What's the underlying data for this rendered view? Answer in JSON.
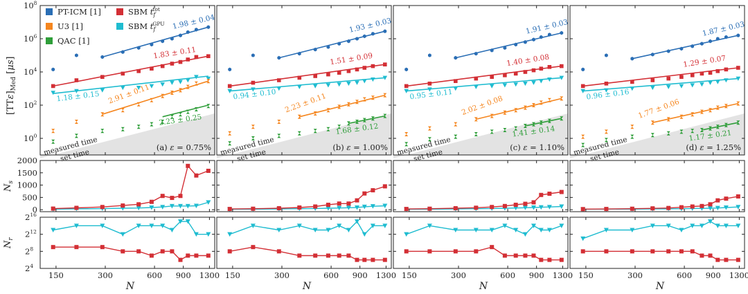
{
  "chart_data": {
    "type": "line",
    "x_values": [
      144,
      200,
      288,
      384,
      480,
      576,
      672,
      768,
      864,
      960,
      1080,
      1280
    ],
    "x_ticks": [
      {
        "label": "150",
        "value": 150
      },
      {
        "label": "300",
        "value": 300
      },
      {
        "label": "600",
        "value": 600
      },
      {
        "label": "900",
        "value": 900
      },
      {
        "label": "1300",
        "value": 1300
      }
    ],
    "xlabel": "N",
    "top_ylabel": "[TTε]_Med [μs]",
    "top_ylim_log10": [
      -1,
      8
    ],
    "top_yticks": [
      {
        "label": "10^0",
        "value": 0
      },
      {
        "label": "10^2",
        "value": 2
      },
      {
        "label": "10^4",
        "value": 4
      },
      {
        "label": "10^6",
        "value": 6
      },
      {
        "label": "10^8",
        "value": 8
      }
    ],
    "mid_ylabel": "N_s",
    "mid_ylim": [
      -80,
      2000
    ],
    "mid_yticks": [
      "0",
      "500",
      "1000",
      "1500",
      "2000"
    ],
    "bot_ylabel": "N_r",
    "bot_ylim_log2": [
      4,
      16
    ],
    "bot_yticks": [
      {
        "label": "2^4",
        "value": 4
      },
      {
        "label": "2^8",
        "value": 8
      },
      {
        "label": "2^12",
        "value": 12
      },
      {
        "label": "2^16",
        "value": 16
      }
    ],
    "region_labels": {
      "measured": "measured time",
      "set": "set time"
    },
    "colors": {
      "ptcim": "#2a6eb5",
      "u3": "#f5861f",
      "qac": "#2f9e3a",
      "sbm_tot": "#d32f35",
      "sbm_gpu": "#1fbcd0",
      "shade": "#e3e3e3"
    },
    "legend": {
      "position": "top-left of panel (a)",
      "entries": [
        {
          "key": "ptcim",
          "label": "PT-ICM [1]"
        },
        {
          "key": "u3",
          "label": "U3 [1]"
        },
        {
          "key": "qac",
          "label": "QAC [1]"
        },
        {
          "key": "sbm_tot",
          "label": "SBM t_f^tot"
        },
        {
          "key": "sbm_gpu",
          "label": "SBM t_f^GPU"
        }
      ]
    },
    "panels": [
      {
        "label": "(a) ε = 0.75%",
        "shade_log10": [
          -1.2,
          1.5
        ],
        "exponents": [
          {
            "key": "ptcim",
            "text": "1.98 ± 0.04"
          },
          {
            "key": "sbm_tot",
            "text": "1.83 ± 0.11"
          },
          {
            "key": "sbm_gpu",
            "text": "1.18 ± 0.15"
          },
          {
            "key": "u3",
            "text": "2.91 ± 0.11"
          },
          {
            "key": "qac",
            "text": "2.23 ± 0.25"
          }
        ],
        "tts": {
          "ptcim": [
            4.15,
            5.0,
            4.9,
            5.2,
            5.45,
            5.65,
            5.85,
            6.0,
            6.2,
            6.4,
            6.55,
            6.7
          ],
          "sbm_tot": [
            3.15,
            3.5,
            3.7,
            3.9,
            4.05,
            4.2,
            4.35,
            4.5,
            4.6,
            4.75,
            4.9,
            4.95
          ],
          "sbm_gpu": [
            2.75,
            2.85,
            2.9,
            3.05,
            3.05,
            3.15,
            3.25,
            3.35,
            3.4,
            3.5,
            3.7,
            3.6
          ],
          "u3": [
            0.45,
            1.0,
            1.45,
            1.7,
            2.05,
            2.3,
            2.55,
            2.75,
            2.9,
            3.1,
            3.3,
            3.45
          ],
          "qac": [
            -0.2,
            0.15,
            0.45,
            0.55,
            0.7,
            0.85,
            1.0,
            1.3,
            1.45,
            1.6,
            1.75,
            1.95
          ]
        },
        "fits": {
          "ptcim": [
            288,
            1280,
            4.9,
            6.7
          ],
          "sbm_tot": [
            144,
            1280,
            3.15,
            4.95
          ],
          "sbm_gpu": [
            144,
            1280,
            2.7,
            3.75
          ],
          "u3": [
            288,
            1280,
            1.45,
            3.45
          ],
          "qac": [
            672,
            1280,
            1.3,
            2.0
          ]
        },
        "ns": {
          "sbm_tot": [
            45,
            75,
            110,
            170,
            220,
            320,
            560,
            480,
            560,
            1780,
            1390,
            1580
          ],
          "sbm_gpu": [
            20,
            35,
            45,
            60,
            70,
            90,
            110,
            150,
            150,
            150,
            160,
            300
          ]
        },
        "nr": {
          "sbm_tot": [
            9,
            9,
            9,
            8,
            8,
            7,
            8,
            8,
            6,
            7,
            7,
            7
          ],
          "sbm_gpu": [
            13,
            14,
            14,
            12,
            14,
            14,
            14,
            13,
            15,
            15,
            12,
            12
          ]
        }
      },
      {
        "label": "(b) ε = 1.00%",
        "shade_log10": [
          -1.2,
          1.5
        ],
        "exponents": [
          {
            "key": "ptcim",
            "text": "1.93 ± 0.03"
          },
          {
            "key": "sbm_tot",
            "text": "1.51 ± 0.09"
          },
          {
            "key": "sbm_gpu",
            "text": "0.94 ± 0.10"
          },
          {
            "key": "u3",
            "text": "2.23 ± 0.11"
          },
          {
            "key": "qac",
            "text": "1.68 ± 0.12"
          }
        ],
        "tts": {
          "ptcim": [
            4.15,
            5.0,
            4.85,
            5.1,
            5.35,
            5.5,
            5.7,
            5.85,
            6.0,
            6.15,
            6.3,
            6.45
          ],
          "sbm_tot": [
            3.15,
            3.35,
            3.5,
            3.65,
            3.75,
            3.85,
            3.95,
            4.05,
            4.15,
            4.25,
            4.35,
            4.45
          ],
          "sbm_gpu": [
            2.85,
            2.95,
            3.0,
            3.1,
            3.15,
            3.2,
            3.25,
            3.3,
            3.35,
            3.45,
            3.55,
            3.65
          ],
          "u3": [
            0.3,
            0.7,
            1.0,
            1.3,
            1.5,
            1.7,
            1.9,
            2.05,
            2.2,
            2.35,
            2.45,
            2.6
          ],
          "qac": [
            -0.3,
            0.0,
            0.15,
            0.3,
            0.45,
            0.55,
            0.7,
            0.9,
            1.0,
            1.1,
            1.2,
            1.35
          ]
        },
        "fits": {
          "ptcim": [
            288,
            1280,
            4.85,
            6.45
          ],
          "sbm_tot": [
            144,
            1280,
            3.15,
            4.45
          ],
          "sbm_gpu": [
            144,
            1280,
            2.85,
            3.65
          ],
          "u3": [
            384,
            1280,
            1.3,
            2.6
          ],
          "qac": [
            768,
            1280,
            0.9,
            1.35
          ]
        },
        "ns": {
          "sbm_tot": [
            30,
            40,
            60,
            90,
            130,
            200,
            250,
            250,
            380,
            660,
            790,
            950
          ],
          "sbm_gpu": [
            15,
            20,
            30,
            40,
            50,
            60,
            70,
            80,
            90,
            120,
            140,
            160
          ]
        },
        "nr": {
          "sbm_tot": [
            8,
            9,
            8,
            7,
            7,
            7,
            7,
            7,
            6,
            6,
            6,
            6
          ],
          "sbm_gpu": [
            12,
            14,
            13,
            14,
            13,
            13,
            14,
            13,
            15,
            12,
            14,
            14
          ]
        }
      },
      {
        "label": "(c) ε = 1.10%",
        "shade_log10": [
          -1.2,
          1.5
        ],
        "exponents": [
          {
            "key": "ptcim",
            "text": "1.91 ± 0.03"
          },
          {
            "key": "sbm_tot",
            "text": "1.40 ± 0.08"
          },
          {
            "key": "sbm_gpu",
            "text": "0.95 ± 0.11"
          },
          {
            "key": "u3",
            "text": "2.02 ± 0.08"
          },
          {
            "key": "qac",
            "text": "1.41 ± 0.14"
          }
        ],
        "tts": {
          "ptcim": [
            4.15,
            5.0,
            4.85,
            5.1,
            5.3,
            5.45,
            5.65,
            5.8,
            5.95,
            6.1,
            6.25,
            6.35
          ],
          "sbm_tot": [
            3.15,
            3.3,
            3.45,
            3.6,
            3.7,
            3.8,
            3.9,
            4.0,
            4.1,
            4.2,
            4.3,
            4.35
          ],
          "sbm_gpu": [
            2.85,
            2.95,
            3.0,
            3.1,
            3.15,
            3.2,
            3.25,
            3.3,
            3.35,
            3.45,
            3.55,
            3.65
          ],
          "u3": [
            0.25,
            0.6,
            0.85,
            1.15,
            1.35,
            1.55,
            1.7,
            1.85,
            2.0,
            2.15,
            2.3,
            2.4
          ],
          "qac": [
            -0.35,
            -0.05,
            0.1,
            0.25,
            0.4,
            0.5,
            0.6,
            0.75,
            0.85,
            0.95,
            1.05,
            1.2
          ]
        },
        "fits": {
          "ptcim": [
            288,
            1280,
            4.85,
            6.35
          ],
          "sbm_tot": [
            144,
            1280,
            3.15,
            4.35
          ],
          "sbm_gpu": [
            144,
            1280,
            2.85,
            3.65
          ],
          "u3": [
            384,
            1280,
            1.15,
            2.4
          ],
          "qac": [
            768,
            1280,
            0.75,
            1.2
          ]
        },
        "ns": {
          "sbm_tot": [
            30,
            40,
            60,
            80,
            110,
            150,
            200,
            240,
            300,
            600,
            650,
            720
          ],
          "sbm_gpu": [
            15,
            20,
            30,
            40,
            50,
            60,
            70,
            80,
            90,
            100,
            110,
            130
          ]
        },
        "nr": {
          "sbm_tot": [
            8,
            8,
            8,
            8,
            9,
            7,
            7,
            7,
            7,
            6,
            6,
            6
          ],
          "sbm_gpu": [
            12,
            14,
            13,
            13,
            13,
            14,
            13,
            12,
            14,
            13,
            13,
            14
          ]
        }
      },
      {
        "label": "(d) ε = 1.25%",
        "shade_log10": [
          -1.2,
          1.5
        ],
        "exponents": [
          {
            "key": "ptcim",
            "text": "1.87 ± 0.03"
          },
          {
            "key": "sbm_tot",
            "text": "1.29 ± 0.07"
          },
          {
            "key": "sbm_gpu",
            "text": "0.96 ± 0.16"
          },
          {
            "key": "u3",
            "text": "1.77 ± 0.06"
          },
          {
            "key": "qac",
            "text": "1.17 ± 0.21"
          }
        ],
        "tts": {
          "ptcim": [
            4.15,
            5.0,
            4.8,
            5.05,
            5.25,
            5.4,
            5.55,
            5.7,
            5.85,
            6.0,
            6.1,
            6.2
          ],
          "sbm_tot": [
            3.15,
            3.3,
            3.4,
            3.5,
            3.6,
            3.7,
            3.8,
            3.9,
            3.95,
            4.05,
            4.15,
            4.25
          ],
          "sbm_gpu": [
            2.85,
            2.9,
            3.0,
            3.05,
            3.1,
            3.15,
            3.2,
            3.25,
            3.35,
            3.4,
            3.5,
            3.6
          ],
          "u3": [
            0.1,
            0.4,
            0.7,
            0.95,
            1.15,
            1.3,
            1.45,
            1.6,
            1.7,
            1.85,
            1.95,
            2.1
          ],
          "qac": [
            -0.4,
            -0.1,
            0.1,
            0.2,
            0.3,
            0.4,
            0.45,
            0.5,
            0.6,
            0.7,
            0.8,
            0.95
          ]
        },
        "fits": {
          "ptcim": [
            288,
            1280,
            4.8,
            6.2
          ],
          "sbm_tot": [
            144,
            1280,
            3.15,
            4.25
          ],
          "sbm_gpu": [
            144,
            1280,
            2.85,
            3.6
          ],
          "u3": [
            384,
            1280,
            0.95,
            2.1
          ],
          "qac": [
            768,
            1280,
            0.5,
            0.95
          ]
        },
        "ns": {
          "sbm_tot": [
            25,
            30,
            40,
            55,
            70,
            100,
            130,
            150,
            220,
            380,
            450,
            540
          ],
          "sbm_gpu": [
            15,
            20,
            25,
            30,
            35,
            40,
            50,
            55,
            60,
            70,
            90,
            110
          ]
        },
        "nr": {
          "sbm_tot": [
            8,
            8,
            8,
            8,
            8,
            8,
            8,
            7,
            7,
            6,
            6,
            6
          ],
          "sbm_gpu": [
            11,
            13,
            13,
            14,
            14,
            13,
            14,
            14,
            15,
            14,
            14,
            14
          ]
        }
      }
    ]
  }
}
